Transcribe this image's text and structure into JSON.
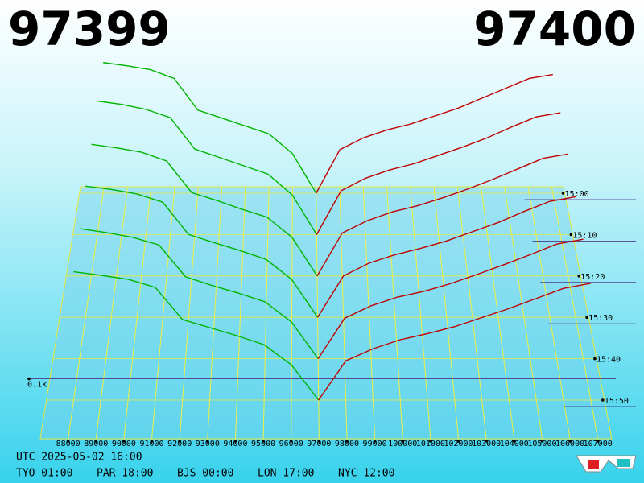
{
  "chart_data": {
    "type": "depth3d",
    "bid_price": "97399",
    "ask_price": "97400",
    "bid_color": "#00b400",
    "ask_color": "#c00000",
    "xlim": [
      87000,
      107500
    ],
    "xticks": [
      88000,
      89000,
      90000,
      91000,
      92000,
      93000,
      94000,
      95000,
      96000,
      97000,
      98000,
      99000,
      100000,
      101000,
      102000,
      103000,
      104000,
      105000,
      106000,
      107000
    ],
    "zlim": [
      0,
      400
    ],
    "zticks": [
      {
        "value": 100,
        "label": "0.1k"
      }
    ],
    "slices": [
      {
        "time": "15:00",
        "bids": [
          330,
          322,
          312,
          290,
          210,
          190,
          170,
          150,
          100,
          0,
          null,
          null,
          null,
          null,
          null,
          null,
          null,
          null,
          null,
          null
        ],
        "asks": [
          null,
          null,
          null,
          null,
          null,
          null,
          null,
          null,
          null,
          0,
          110,
          140,
          160,
          175,
          195,
          215,
          240,
          265,
          290,
          300
        ]
      },
      {
        "time": "15:10",
        "bids": [
          320,
          312,
          300,
          280,
          205,
          185,
          165,
          145,
          95,
          0,
          null,
          null,
          null,
          null,
          null,
          null,
          null,
          null,
          null,
          null
        ],
        "asks": [
          null,
          null,
          null,
          null,
          null,
          null,
          null,
          null,
          null,
          0,
          105,
          135,
          155,
          170,
          190,
          210,
          232,
          258,
          282,
          292
        ]
      },
      {
        "time": "15:20",
        "bids": [
          300,
          292,
          282,
          262,
          190,
          172,
          152,
          134,
          88,
          0,
          null,
          null,
          null,
          null,
          null,
          null,
          null,
          null,
          null,
          null
        ],
        "asks": [
          null,
          null,
          null,
          null,
          null,
          null,
          null,
          null,
          null,
          0,
          98,
          126,
          146,
          160,
          178,
          198,
          220,
          244,
          268,
          278
        ]
      },
      {
        "time": "15:30",
        "bids": [
          285,
          278,
          268,
          250,
          180,
          162,
          145,
          126,
          82,
          0,
          null,
          null,
          null,
          null,
          null,
          null,
          null,
          null,
          null,
          null
        ],
        "asks": [
          null,
          null,
          null,
          null,
          null,
          null,
          null,
          null,
          null,
          0,
          90,
          118,
          136,
          150,
          166,
          186,
          206,
          230,
          252,
          262
        ]
      },
      {
        "time": "15:40",
        "bids": [
          270,
          262,
          252,
          236,
          170,
          152,
          136,
          118,
          76,
          0,
          null,
          null,
          null,
          null,
          null,
          null,
          null,
          null,
          null,
          null
        ],
        "asks": [
          null,
          null,
          null,
          null,
          null,
          null,
          null,
          null,
          null,
          0,
          84,
          110,
          128,
          140,
          156,
          175,
          195,
          216,
          238,
          248
        ]
      },
      {
        "time": "15:50",
        "bids": [
          255,
          248,
          240,
          224,
          160,
          144,
          128,
          110,
          70,
          0,
          null,
          null,
          null,
          null,
          null,
          null,
          null,
          null,
          null,
          null
        ],
        "asks": [
          null,
          null,
          null,
          null,
          null,
          null,
          null,
          null,
          null,
          0,
          78,
          102,
          120,
          132,
          146,
          164,
          182,
          202,
          222,
          232
        ]
      }
    ],
    "footer": {
      "utc": "UTC 2025-05-02 16:00",
      "cities": [
        "TYO 01:00",
        "PAR 18:00",
        "BJS 00:00",
        "LON 17:00",
        "NYC 12:00"
      ]
    }
  }
}
